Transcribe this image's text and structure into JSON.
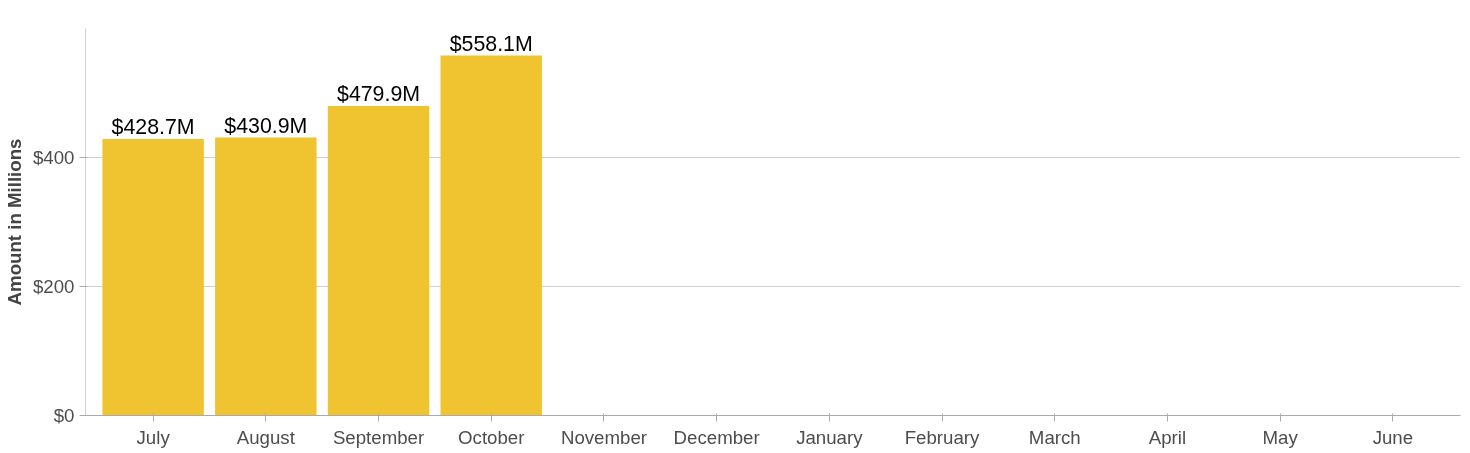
{
  "chart_data": {
    "type": "bar",
    "ylabel": "Amount in Millions",
    "categories": [
      "July",
      "August",
      "September",
      "October",
      "November",
      "December",
      "January",
      "February",
      "March",
      "April",
      "May",
      "June"
    ],
    "values": [
      428.7,
      430.9,
      479.9,
      558.1,
      null,
      null,
      null,
      null,
      null,
      null,
      null,
      null
    ],
    "value_labels": [
      "$428.7M",
      "$430.9M",
      "$479.9M",
      "$558.1M",
      null,
      null,
      null,
      null,
      null,
      null,
      null,
      null
    ],
    "color": "#f0c330",
    "ylim": [
      0,
      600
    ],
    "yticks": [
      {
        "value": 0,
        "label": "$0"
      },
      {
        "value": 200,
        "label": "$200"
      },
      {
        "value": 400,
        "label": "$400"
      }
    ],
    "grid": "y"
  }
}
